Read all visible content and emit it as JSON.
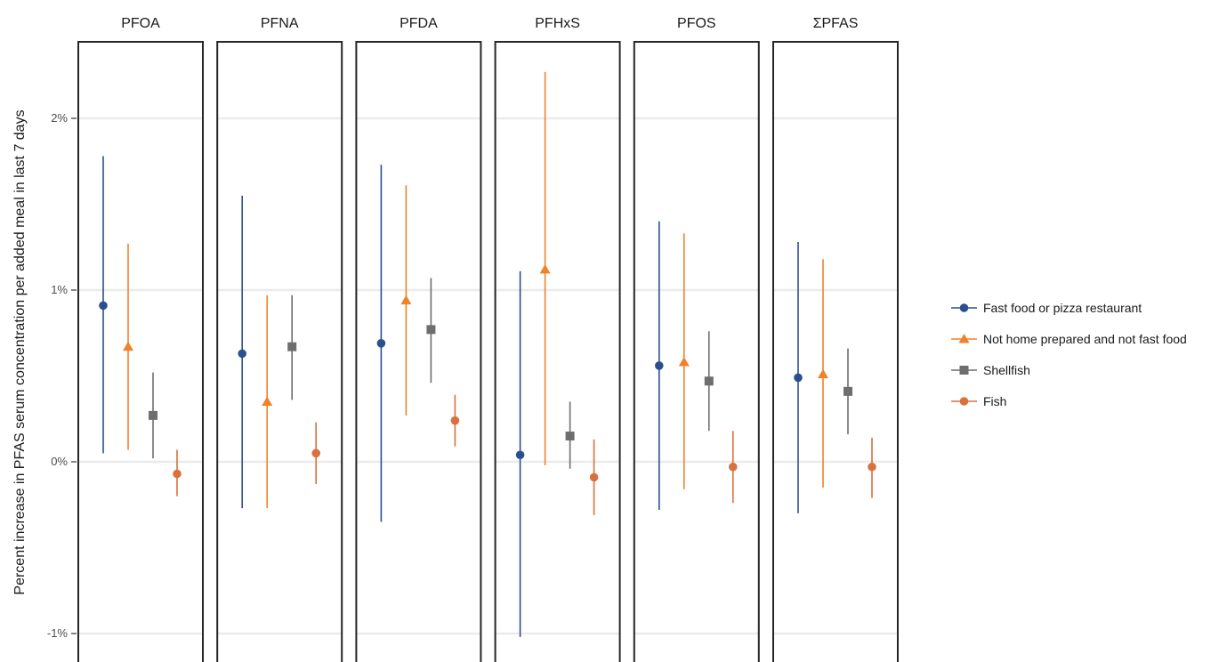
{
  "chart_data": {
    "type": "scatter",
    "subtype": "faceted point-range (estimate with confidence interval)",
    "ylabel": "Percent increase in PFAS serum concentration per added meal in last 7 days",
    "ylim": [
      -1.1,
      2.4
    ],
    "yticks": [
      -1,
      0,
      1,
      2
    ],
    "ytick_labels": [
      "-1%",
      "0%",
      "1%",
      "2%"
    ],
    "grid": "horizontal major lines",
    "legend": {
      "position": "right"
    },
    "series": [
      {
        "name": "Fast food or pizza restaurant",
        "marker": "circle",
        "color": "#2a4f8f"
      },
      {
        "name": "Not home prepared and not fast food",
        "marker": "triangle",
        "color": "#f0822a"
      },
      {
        "name": "Shellfish",
        "marker": "square",
        "color": "#6e6e6e"
      },
      {
        "name": "Fish",
        "marker": "circle",
        "color": "#d9703e"
      }
    ],
    "facets": [
      {
        "title": "PFOA",
        "points": [
          {
            "est": 0.91,
            "lo": 0.05,
            "hi": 1.78
          },
          {
            "est": 0.67,
            "lo": 0.07,
            "hi": 1.27
          },
          {
            "est": 0.27,
            "lo": 0.02,
            "hi": 0.52
          },
          {
            "est": -0.07,
            "lo": -0.2,
            "hi": 0.07
          }
        ]
      },
      {
        "title": "PFNA",
        "points": [
          {
            "est": 0.63,
            "lo": -0.27,
            "hi": 1.55
          },
          {
            "est": 0.35,
            "lo": -0.27,
            "hi": 0.97
          },
          {
            "est": 0.67,
            "lo": 0.36,
            "hi": 0.97
          },
          {
            "est": 0.05,
            "lo": -0.13,
            "hi": 0.23
          }
        ]
      },
      {
        "title": "PFDA",
        "points": [
          {
            "est": 0.69,
            "lo": -0.35,
            "hi": 1.73
          },
          {
            "est": 0.94,
            "lo": 0.27,
            "hi": 1.61
          },
          {
            "est": 0.77,
            "lo": 0.46,
            "hi": 1.07
          },
          {
            "est": 0.24,
            "lo": 0.09,
            "hi": 0.39
          }
        ]
      },
      {
        "title": "PFHxS",
        "points": [
          {
            "est": 0.04,
            "lo": -1.02,
            "hi": 1.11
          },
          {
            "est": 1.12,
            "lo": -0.02,
            "hi": 2.27
          },
          {
            "est": 0.15,
            "lo": -0.04,
            "hi": 0.35
          },
          {
            "est": -0.09,
            "lo": -0.31,
            "hi": 0.13
          }
        ]
      },
      {
        "title": "PFOS",
        "points": [
          {
            "est": 0.56,
            "lo": -0.28,
            "hi": 1.4
          },
          {
            "est": 0.58,
            "lo": -0.16,
            "hi": 1.33
          },
          {
            "est": 0.47,
            "lo": 0.18,
            "hi": 0.76
          },
          {
            "est": -0.03,
            "lo": -0.24,
            "hi": 0.18
          }
        ]
      },
      {
        "title": "ΣPFAS",
        "points": [
          {
            "est": 0.49,
            "lo": -0.3,
            "hi": 1.28
          },
          {
            "est": 0.51,
            "lo": -0.15,
            "hi": 1.18
          },
          {
            "est": 0.41,
            "lo": 0.16,
            "hi": 0.66
          },
          {
            "est": -0.03,
            "lo": -0.21,
            "hi": 0.14
          }
        ]
      }
    ]
  }
}
